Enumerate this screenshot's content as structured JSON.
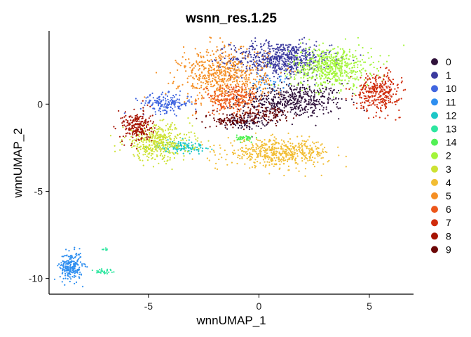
{
  "chart_data": {
    "type": "scatter",
    "title": "wsnn_res.1.25",
    "xlabel": "wnnUMAP_1",
    "ylabel": "wnnUMAP_2",
    "xlim": [
      -9.5,
      7.0
    ],
    "ylim": [
      -10.9,
      4.2
    ],
    "x_ticks": [
      -5,
      0,
      5
    ],
    "y_ticks": [
      0,
      -5,
      -10
    ],
    "grid": false,
    "legend_position": "right",
    "series": [
      {
        "name": "0",
        "color": "#30123b",
        "clusters": [
          {
            "cx": 1.5,
            "cy": 0.2,
            "sx": 1.3,
            "sy": 0.55,
            "n": 520
          },
          {
            "cx": -0.5,
            "cy": -1.0,
            "sx": 0.5,
            "sy": 0.25,
            "n": 90
          }
        ]
      },
      {
        "name": "1",
        "color": "#3b3a9e",
        "clusters": [
          {
            "cx": 1.0,
            "cy": 2.6,
            "sx": 1.25,
            "sy": 0.55,
            "n": 650
          }
        ]
      },
      {
        "name": "10",
        "color": "#4166e0",
        "clusters": [
          {
            "cx": -4.2,
            "cy": 0.05,
            "sx": 0.65,
            "sy": 0.3,
            "n": 170
          }
        ]
      },
      {
        "name": "11",
        "color": "#2f8ff0",
        "clusters": [
          {
            "cx": -8.5,
            "cy": -9.3,
            "sx": 0.28,
            "sy": 0.45,
            "n": 230
          },
          {
            "cx": 0.4,
            "cy": 1.3,
            "sx": 0.5,
            "sy": 0.3,
            "n": 40
          }
        ]
      },
      {
        "name": "12",
        "color": "#1bc7c7",
        "clusters": [
          {
            "cx": -3.5,
            "cy": -2.45,
            "sx": 0.6,
            "sy": 0.18,
            "n": 130
          }
        ]
      },
      {
        "name": "13",
        "color": "#2ee6a0",
        "clusters": [
          {
            "cx": -7.0,
            "cy": -9.6,
            "sx": 0.3,
            "sy": 0.12,
            "n": 30
          },
          {
            "cx": -7.0,
            "cy": -8.4,
            "sx": 0.08,
            "sy": 0.12,
            "n": 8
          }
        ]
      },
      {
        "name": "14",
        "color": "#52f055",
        "clusters": [
          {
            "cx": -0.6,
            "cy": -1.95,
            "sx": 0.22,
            "sy": 0.1,
            "n": 45
          }
        ]
      },
      {
        "name": "2",
        "color": "#a3f53a",
        "clusters": [
          {
            "cx": 3.3,
            "cy": 2.1,
            "sx": 1.0,
            "sy": 0.65,
            "n": 560
          }
        ]
      },
      {
        "name": "3",
        "color": "#cde233",
        "clusters": [
          {
            "cx": -4.6,
            "cy": -2.2,
            "sx": 0.85,
            "sy": 0.55,
            "n": 420
          }
        ]
      },
      {
        "name": "4",
        "color": "#f2bd33",
        "clusters": [
          {
            "cx": 0.9,
            "cy": -2.8,
            "sx": 1.3,
            "sy": 0.42,
            "n": 520
          }
        ]
      },
      {
        "name": "5",
        "color": "#f58f24",
        "clusters": [
          {
            "cx": -1.6,
            "cy": 1.6,
            "sx": 1.1,
            "sy": 0.9,
            "n": 620
          }
        ]
      },
      {
        "name": "6",
        "color": "#ec561a",
        "clusters": [
          {
            "cx": -1.2,
            "cy": 0.3,
            "sx": 0.7,
            "sy": 0.45,
            "n": 230
          }
        ]
      },
      {
        "name": "7",
        "color": "#d02c0c",
        "clusters": [
          {
            "cx": 5.4,
            "cy": 0.7,
            "sx": 0.55,
            "sy": 0.6,
            "n": 330
          }
        ]
      },
      {
        "name": "8",
        "color": "#a61403",
        "clusters": [
          {
            "cx": -5.5,
            "cy": -1.3,
            "sx": 0.38,
            "sy": 0.5,
            "n": 220
          }
        ]
      },
      {
        "name": "9",
        "color": "#6b0606",
        "clusters": [
          {
            "cx": -1.1,
            "cy": -0.9,
            "sx": 0.6,
            "sy": 0.25,
            "n": 120
          },
          {
            "cx": 0.5,
            "cy": -0.6,
            "sx": 0.6,
            "sy": 0.3,
            "n": 90
          }
        ]
      }
    ]
  }
}
